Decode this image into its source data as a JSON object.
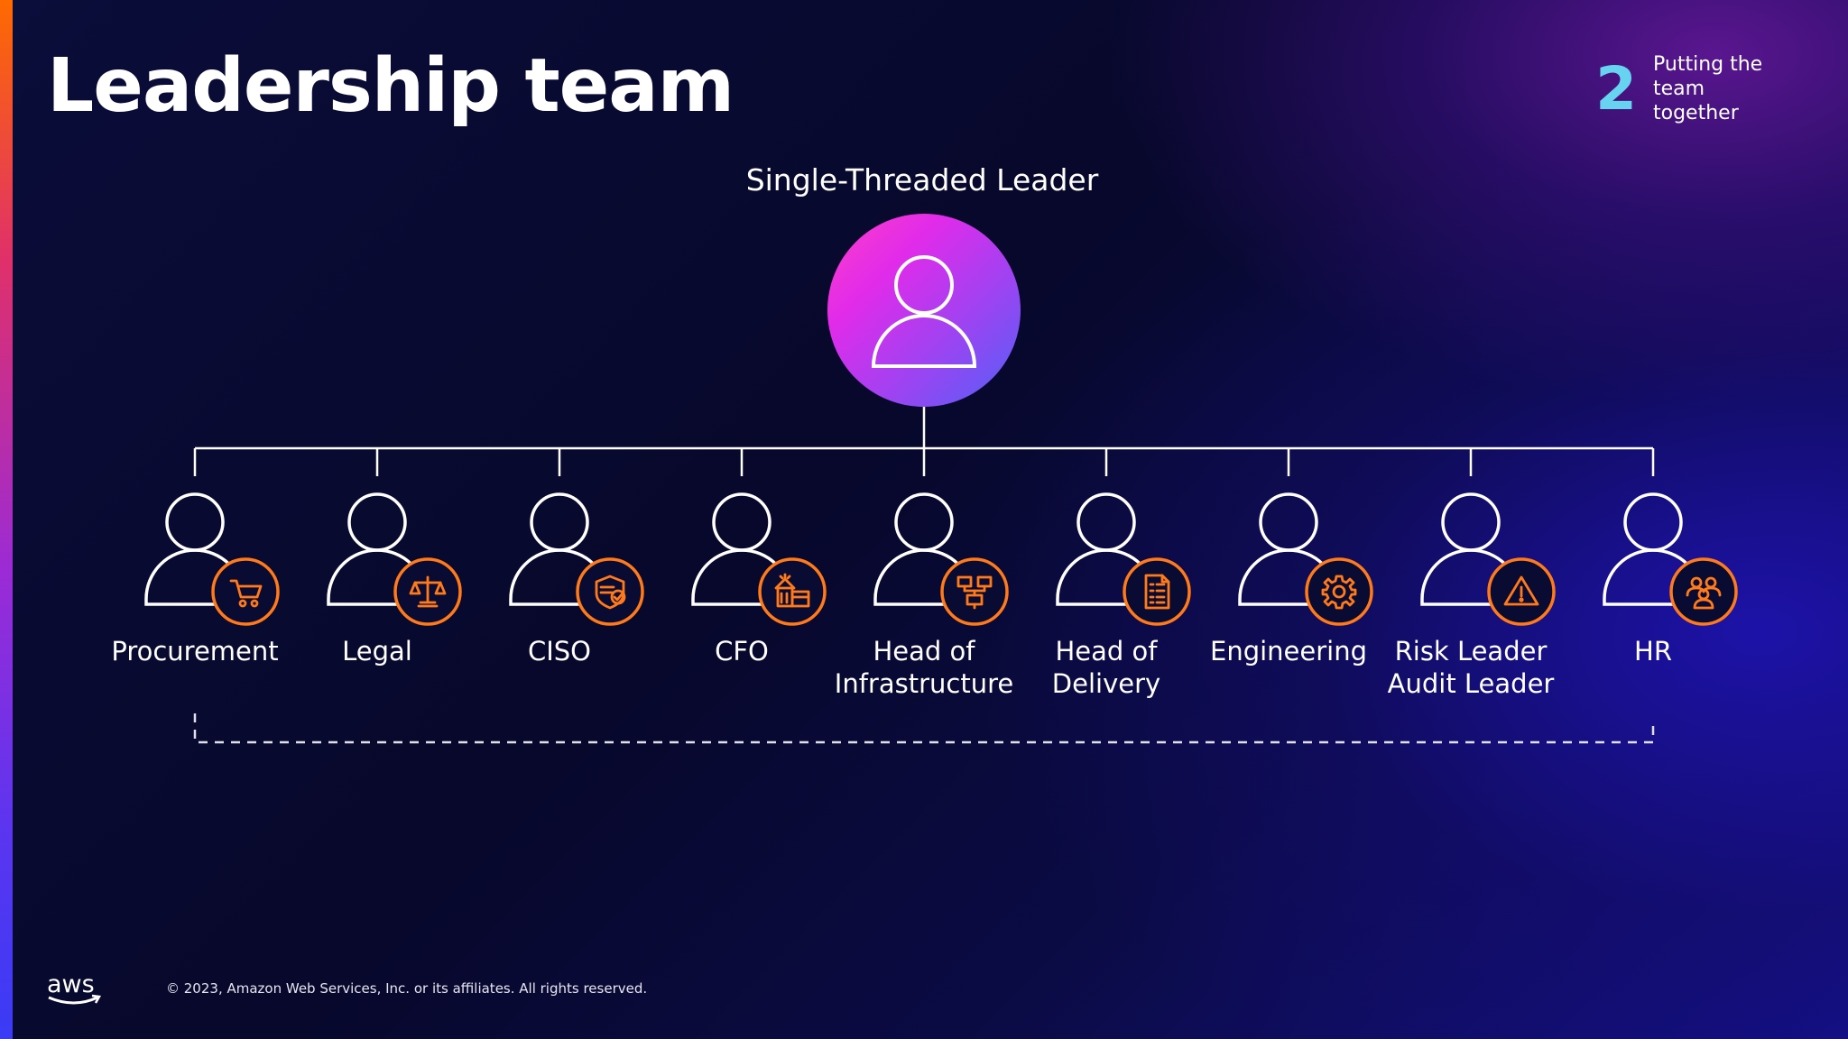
{
  "slide": {
    "title": "Leadership team",
    "section": {
      "number": "2",
      "text": "Putting the team together"
    },
    "footer": {
      "copyright": "© 2023, Amazon Web Services, Inc. or its affiliates. All rights reserved."
    }
  },
  "diagram": {
    "root": {
      "label": "Single-Threaded Leader"
    },
    "roles": [
      {
        "label": "Procurement",
        "icon": "shopping-cart-icon"
      },
      {
        "label": "Legal",
        "icon": "scales-icon"
      },
      {
        "label": "CISO",
        "icon": "shield-check-icon"
      },
      {
        "label": "CFO",
        "icon": "bank-building-icon"
      },
      {
        "label": "Head of Infrastructure",
        "icon": "network-structure-icon"
      },
      {
        "label": "Head of Delivery",
        "icon": "checklist-document-icon"
      },
      {
        "label": "Engineering",
        "icon": "gear-icon"
      },
      {
        "label": "Risk Leader Audit Leader",
        "icon": "warning-triangle-icon"
      },
      {
        "label": "HR",
        "icon": "people-group-icon"
      }
    ],
    "colors": {
      "accent_orange": "#ff7a1a",
      "line_white": "#ffffff",
      "root_gradient": [
        "#ff2bd6",
        "#b53cf0",
        "#5a5cf7"
      ],
      "section_number": "#67d3f0"
    }
  }
}
